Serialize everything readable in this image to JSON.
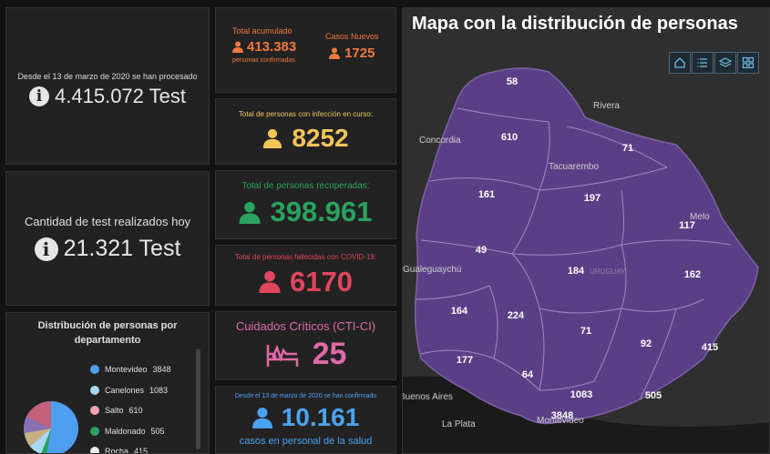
{
  "tests": {
    "desde": "Desde el 13 de marzo de 2020 se han procesado",
    "total": "4.415.072 Test"
  },
  "test_hoy": {
    "label": "Cantidad de test realizados hoy",
    "value": "21.321 Test"
  },
  "distribucion": {
    "title_line1": "Distribución de personas por",
    "title_line2": "departamento",
    "legend": [
      {
        "name": "Montevideo",
        "value": "3848",
        "color": "#4f9ff0"
      },
      {
        "name": "Canelones",
        "value": "1083",
        "color": "#a9d8f5"
      },
      {
        "name": "Salto",
        "value": "610",
        "color": "#f2a3b2"
      },
      {
        "name": "Maldonado",
        "value": "505",
        "color": "#2aa160"
      },
      {
        "name": "Rocha",
        "value": "415",
        "color": "#e8eef2"
      }
    ]
  },
  "acumulado": {
    "label": "Total acumulado",
    "value": "413.383",
    "sub": "personas confirmadas",
    "nuevos_label": "Casos Nuevos",
    "nuevos_value": "1725",
    "color": "#f0793e"
  },
  "en_curso": {
    "label": "Total de personas con infección en curso:",
    "value": "8252",
    "color": "#f4c55a"
  },
  "recuperadas": {
    "label": "Total de personas recuperadas:",
    "value": "398.961",
    "color": "#2aa35f"
  },
  "fallecidas": {
    "label": "Total de personas fallecidas con COVID-19:",
    "value": "6170",
    "color": "#e2455e"
  },
  "cti": {
    "label": "Cuidados Críticos (CTI-CI)",
    "value": "25",
    "color": "#e06aa6"
  },
  "salud": {
    "desde": "Desde el 13 de marzo de 2020 se han confirmado",
    "value": "10.161",
    "sub": "casos en personal de la salud",
    "color": "#4aa3f0"
  },
  "map": {
    "title": "Mapa con la distribución de personas",
    "cities": [
      "Rivera",
      "Concordia",
      "Tacuarembo",
      "Melo",
      "Gualeguaychú",
      "Buenos Aires",
      "La Plata",
      "Montevideo",
      "URUGUAY"
    ],
    "values": [
      "58",
      "610",
      "71",
      "161",
      "197",
      "117",
      "49",
      "184",
      "162",
      "164",
      "224",
      "71",
      "92",
      "415",
      "177",
      "64",
      "1083",
      "505",
      "3848"
    ]
  }
}
